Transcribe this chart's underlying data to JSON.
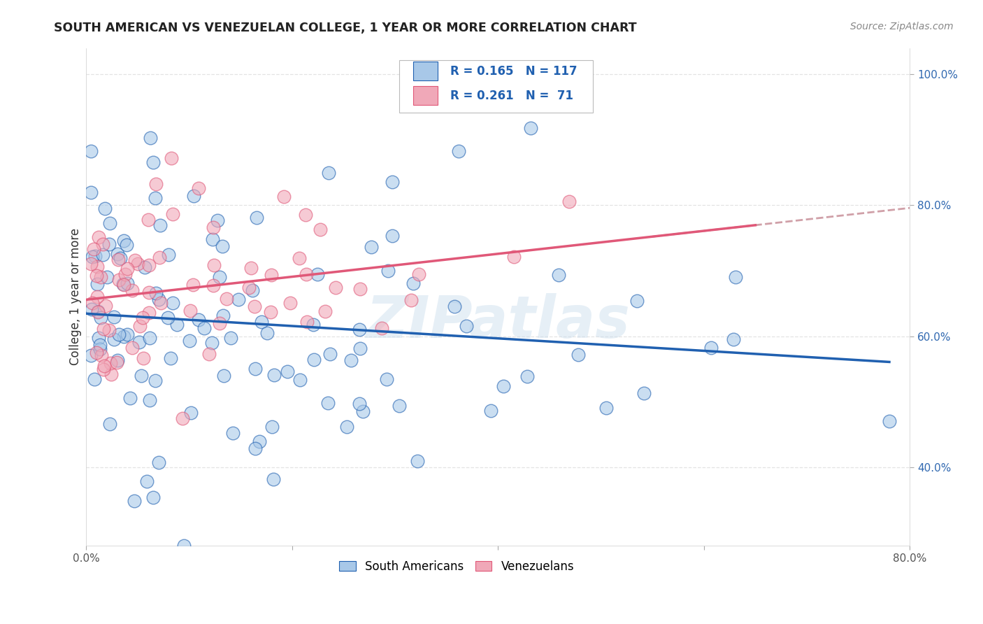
{
  "title": "SOUTH AMERICAN VS VENEZUELAN COLLEGE, 1 YEAR OR MORE CORRELATION CHART",
  "source": "Source: ZipAtlas.com",
  "ylabel": "College, 1 year or more",
  "xlim": [
    0.0,
    0.8
  ],
  "ylim": [
    0.28,
    1.04
  ],
  "xtick_positions": [
    0.0,
    0.2,
    0.4,
    0.6,
    0.8
  ],
  "xtick_labels": [
    "0.0%",
    "",
    "",
    "",
    "80.0%"
  ],
  "ytick_positions": [
    0.4,
    0.6,
    0.8,
    1.0
  ],
  "ytick_labels": [
    "40.0%",
    "60.0%",
    "80.0%",
    "100.0%"
  ],
  "r_sa": 0.165,
  "n_sa": 117,
  "r_ve": 0.261,
  "n_ve": 71,
  "blue_scatter_color": "#A8C8E8",
  "pink_scatter_color": "#F0A8B8",
  "blue_line_color": "#2060B0",
  "pink_line_color": "#E05878",
  "gray_dashed_color": "#D0A0A8",
  "legend_label_sa": "South Americans",
  "legend_label_ve": "Venezuelans",
  "watermark": "ZIPatlas",
  "background_color": "#FFFFFF",
  "grid_color": "#DDDDDD",
  "title_color": "#222222",
  "source_color": "#888888",
  "ytick_color": "#3068B0",
  "xtick_color": "#555555",
  "ylabel_color": "#333333"
}
